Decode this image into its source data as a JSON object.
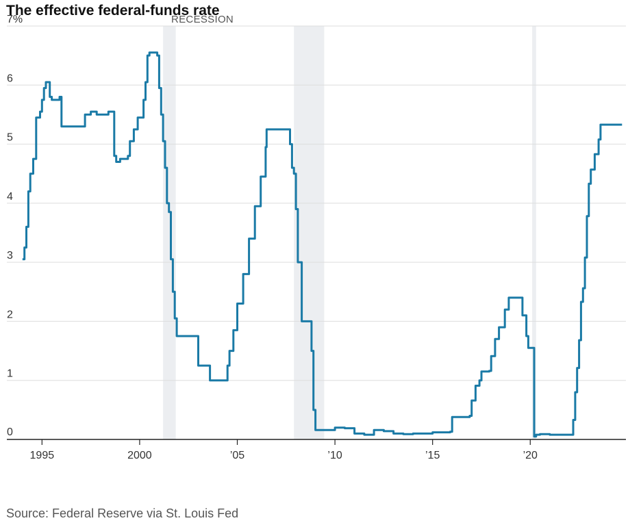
{
  "chart_data": {
    "type": "line",
    "title": "The effective federal-funds rate",
    "source": "Source: Federal Reserve via St. Louis Fed",
    "recession_label": "RECESSION",
    "y_unit_label": "7%",
    "ylim": [
      0,
      7
    ],
    "xlim": [
      1993.2,
      2024.9
    ],
    "y_ticks": [
      {
        "value": 0,
        "label": "0"
      },
      {
        "value": 1,
        "label": "1"
      },
      {
        "value": 2,
        "label": "2"
      },
      {
        "value": 3,
        "label": "3"
      },
      {
        "value": 4,
        "label": "4"
      },
      {
        "value": 5,
        "label": "5"
      },
      {
        "value": 6,
        "label": "6"
      },
      {
        "value": 7,
        "label": "7%"
      }
    ],
    "x_ticks": [
      {
        "value": 1995,
        "label": "1995"
      },
      {
        "value": 2000,
        "label": "2000"
      },
      {
        "value": 2005,
        "label": "’05"
      },
      {
        "value": 2010,
        "label": "’10"
      },
      {
        "value": 2015,
        "label": "’15"
      },
      {
        "value": 2020,
        "label": "’20"
      }
    ],
    "recessions": [
      {
        "start": 2001.2,
        "end": 2001.85
      },
      {
        "start": 2007.9,
        "end": 2009.45
      },
      {
        "start": 2020.1,
        "end": 2020.3
      }
    ],
    "colors": {
      "line": "#1a7aa6",
      "recession": "#eceef1",
      "grid": "#dddddd",
      "axis": "#222222"
    },
    "series": [
      {
        "name": "Effective federal-funds rate",
        "x": [
          1994.0,
          1994.1,
          1994.2,
          1994.3,
          1994.4,
          1994.55,
          1994.7,
          1994.9,
          1995.0,
          1995.1,
          1995.2,
          1995.4,
          1995.5,
          1995.6,
          1995.9,
          1996.0,
          1996.3,
          1996.6,
          1997.0,
          1997.2,
          1997.5,
          1997.8,
          1998.0,
          1998.4,
          1998.7,
          1998.8,
          1998.9,
          1999.0,
          1999.4,
          1999.5,
          1999.7,
          1999.9,
          2000.0,
          2000.2,
          2000.3,
          2000.4,
          2000.5,
          2000.9,
          2001.0,
          2001.1,
          2001.2,
          2001.3,
          2001.4,
          2001.5,
          2001.6,
          2001.7,
          2001.8,
          2001.9,
          2002.0,
          2002.9,
          2003.0,
          2003.5,
          2003.6,
          2004.4,
          2004.5,
          2004.6,
          2004.8,
          2005.0,
          2005.3,
          2005.6,
          2005.9,
          2006.2,
          2006.45,
          2006.5,
          2007.6,
          2007.7,
          2007.8,
          2007.9,
          2008.0,
          2008.1,
          2008.3,
          2008.7,
          2008.8,
          2008.9,
          2009.0,
          2010.0,
          2010.5,
          2011.0,
          2011.5,
          2012.0,
          2012.5,
          2013.0,
          2013.5,
          2014.0,
          2015.0,
          2015.9,
          2016.0,
          2016.9,
          2017.0,
          2017.2,
          2017.4,
          2017.5,
          2017.9,
          2018.0,
          2018.2,
          2018.4,
          2018.7,
          2018.9,
          2019.0,
          2019.5,
          2019.6,
          2019.8,
          2019.9,
          2020.1,
          2020.2,
          2020.3,
          2020.5,
          2021.0,
          2021.5,
          2022.0,
          2022.2,
          2022.3,
          2022.4,
          2022.5,
          2022.6,
          2022.7,
          2022.8,
          2022.9,
          2023.0,
          2023.1,
          2023.3,
          2023.5,
          2023.6,
          2023.7,
          2024.7
        ],
        "y": [
          3.05,
          3.25,
          3.6,
          4.2,
          4.5,
          4.75,
          5.45,
          5.55,
          5.75,
          5.95,
          6.05,
          5.8,
          5.75,
          5.75,
          5.8,
          5.3,
          5.3,
          5.3,
          5.3,
          5.5,
          5.55,
          5.5,
          5.5,
          5.55,
          4.8,
          4.7,
          4.7,
          4.75,
          4.8,
          5.05,
          5.25,
          5.45,
          5.45,
          5.75,
          6.05,
          6.5,
          6.55,
          6.5,
          5.95,
          5.5,
          5.05,
          4.6,
          4.0,
          3.85,
          3.05,
          2.5,
          2.05,
          1.75,
          1.75,
          1.75,
          1.25,
          1.25,
          1.0,
          1.0,
          1.25,
          1.5,
          1.85,
          2.3,
          2.8,
          3.4,
          3.95,
          4.45,
          4.95,
          5.25,
          5.25,
          5.0,
          4.6,
          4.5,
          3.9,
          3.0,
          2.0,
          2.0,
          1.5,
          0.5,
          0.16,
          0.2,
          0.19,
          0.1,
          0.08,
          0.16,
          0.14,
          0.1,
          0.09,
          0.1,
          0.12,
          0.13,
          0.38,
          0.4,
          0.66,
          0.91,
          1.0,
          1.15,
          1.16,
          1.41,
          1.7,
          1.9,
          2.2,
          2.4,
          2.4,
          2.4,
          2.1,
          1.75,
          1.55,
          1.55,
          0.05,
          0.08,
          0.09,
          0.08,
          0.08,
          0.08,
          0.33,
          0.8,
          1.21,
          1.68,
          2.33,
          2.56,
          3.08,
          3.78,
          4.33,
          4.57,
          4.83,
          5.08,
          5.33,
          5.33,
          5.33
        ]
      }
    ]
  }
}
